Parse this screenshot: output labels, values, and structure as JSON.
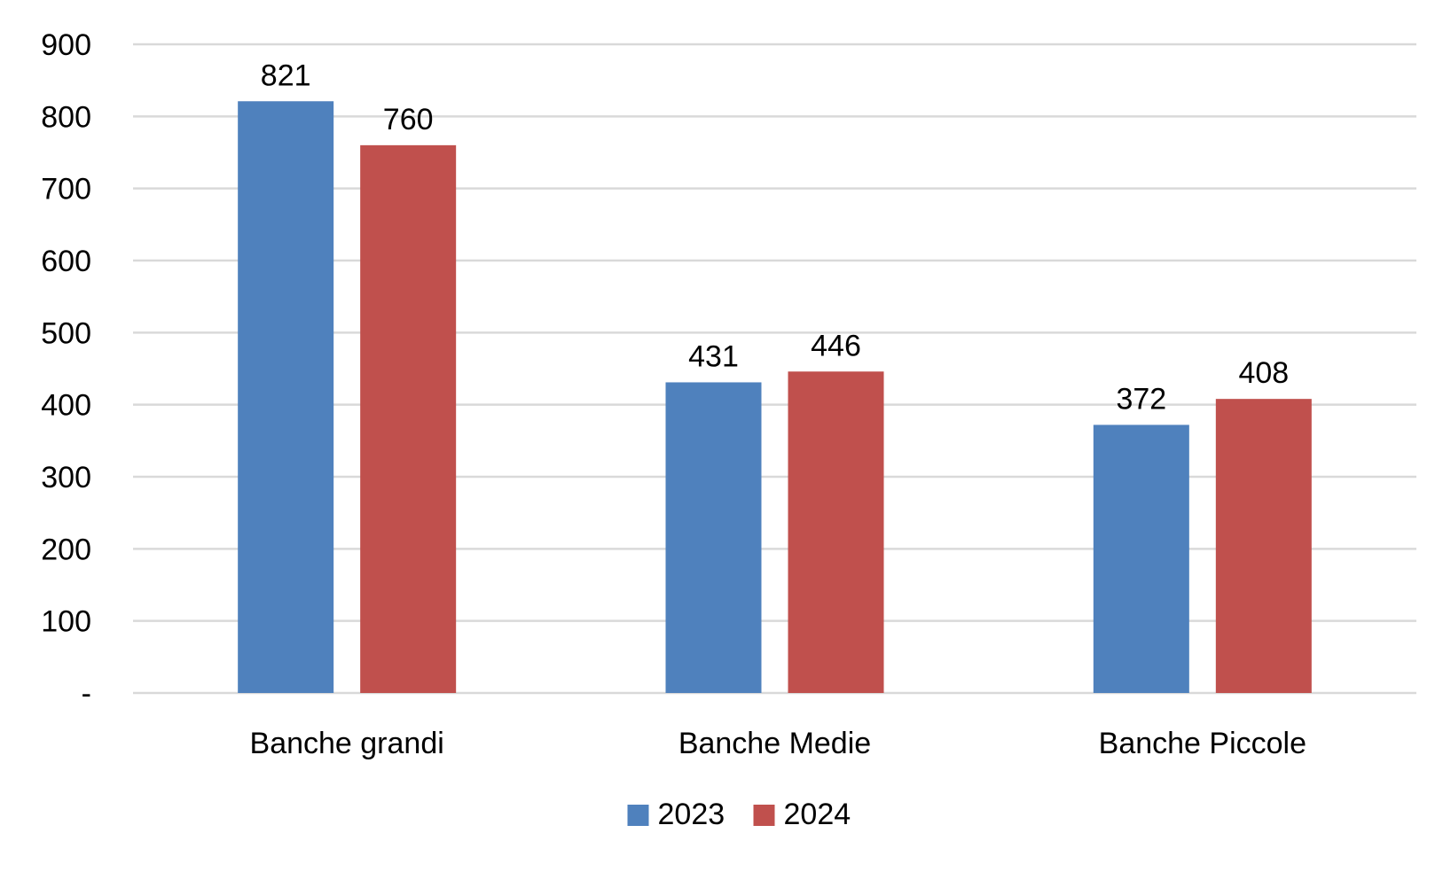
{
  "chart_data": {
    "type": "bar",
    "title": "",
    "xlabel": "",
    "ylabel": "",
    "categories": [
      "Banche grandi",
      "Banche Medie",
      "Banche Piccole"
    ],
    "series": [
      {
        "name": "2023",
        "color": "#4F81BD",
        "values": [
          821,
          431,
          372
        ]
      },
      {
        "name": "2024",
        "color": "#C0504D",
        "values": [
          760,
          446,
          408
        ]
      }
    ],
    "ylim": [
      0,
      900
    ],
    "yticks": [
      0,
      100,
      200,
      300,
      400,
      500,
      600,
      700,
      800,
      900
    ],
    "ytick_labels": [
      "-",
      "100",
      "200",
      "300",
      "400",
      "500",
      "600",
      "700",
      "800",
      "900"
    ],
    "grid": true,
    "legend_position": "bottom"
  }
}
